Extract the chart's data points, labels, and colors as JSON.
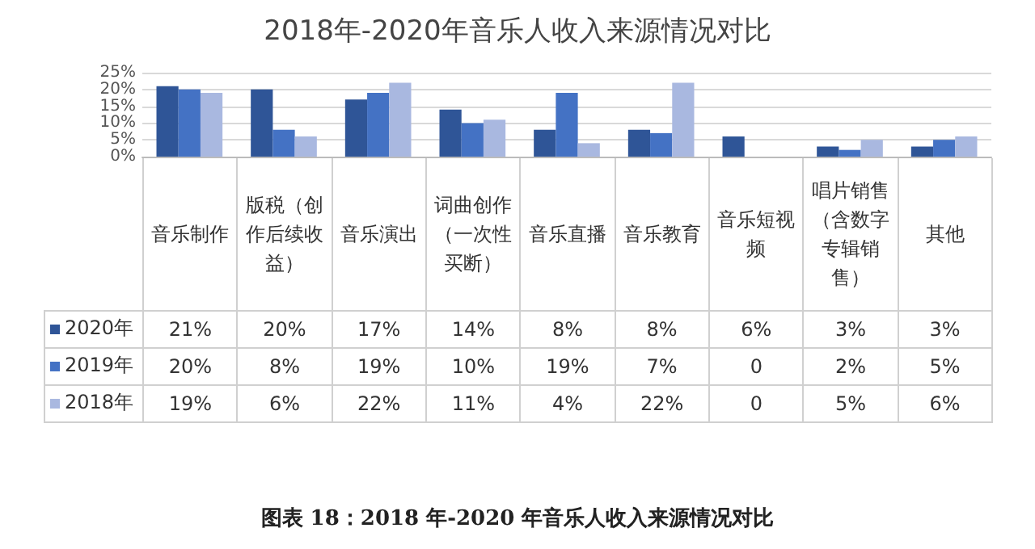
{
  "chart_data": {
    "type": "bar",
    "title": "2018年-2020年音乐人收入来源情况对比",
    "categories": [
      "音乐制作",
      "版税（创作后续收益）",
      "音乐演出",
      "词曲创作（一次性买断）",
      "音乐直播",
      "音乐教育",
      "音乐短视频",
      "唱片销售（含数字专辑销售）",
      "其他"
    ],
    "series": [
      {
        "name": "2020年",
        "color": "#2f5597",
        "values": [
          21,
          20,
          17,
          14,
          8,
          8,
          6,
          3,
          3
        ],
        "value_labels": [
          "21%",
          "20%",
          "17%",
          "14%",
          "8%",
          "8%",
          "6%",
          "3%",
          "3%"
        ]
      },
      {
        "name": "2019年",
        "color": "#4472c4",
        "values": [
          20,
          8,
          19,
          10,
          19,
          7,
          0,
          2,
          5
        ],
        "value_labels": [
          "20%",
          "8%",
          "19%",
          "10%",
          "19%",
          "7%",
          "0",
          "2%",
          "5%"
        ]
      },
      {
        "name": "2018年",
        "color": "#a9b8e0",
        "values": [
          19,
          6,
          22,
          11,
          4,
          22,
          0,
          5,
          6
        ],
        "value_labels": [
          "19%",
          "6%",
          "22%",
          "11%",
          "4%",
          "22%",
          "0",
          "5%",
          "6%"
        ]
      }
    ],
    "ylim": [
      0,
      25
    ],
    "yticks": [
      {
        "value": 0,
        "label": "0%"
      },
      {
        "value": 5,
        "label": "5%"
      },
      {
        "value": 10,
        "label": "10%"
      },
      {
        "value": 15,
        "label": "15%"
      },
      {
        "value": 20,
        "label": "20%"
      },
      {
        "value": 25,
        "label": "25%"
      }
    ],
    "grid": "y",
    "legend": "bottom left",
    "annotations": [
      "图表 18：2018 年-2020 年音乐人收入来源情况对比"
    ]
  }
}
